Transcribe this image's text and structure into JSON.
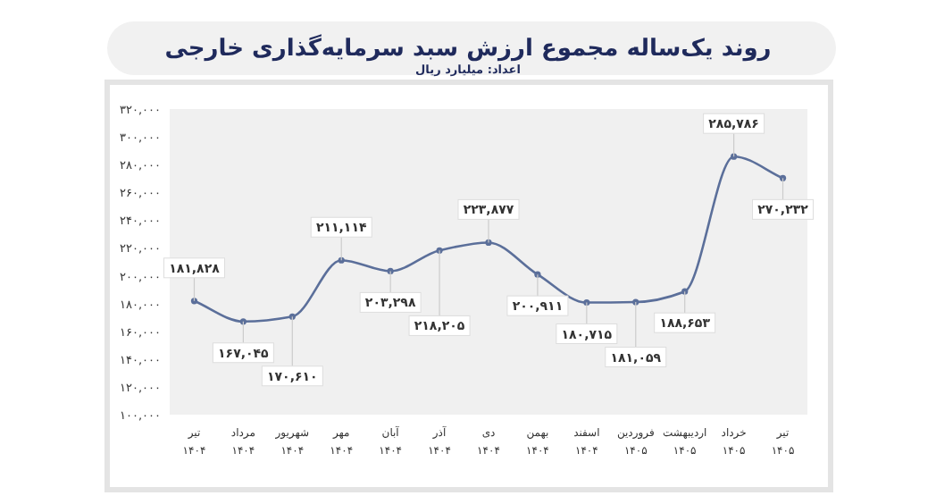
{
  "chart_data": {
    "type": "line",
    "title": "روند یک‌ساله مجموع ارزش سبد سرمایه‌گذاری خارجی",
    "subtitle": "اعداد: میلیارد ریال",
    "categories": [
      "تیر\n۱۴۰۴",
      "مرداد\n۱۴۰۴",
      "شهریور\n۱۴۰۴",
      "مهر\n۱۴۰۴",
      "آبان\n۱۴۰۴",
      "آذر\n۱۴۰۴",
      "دی\n۱۴۰۴",
      "بهمن\n۱۴۰۴",
      "اسفند\n۱۴۰۴",
      "فروردین\n۱۴۰۵",
      "اردیبهشت\n۱۴۰۵",
      "خرداد\n۱۴۰۵",
      "تیر\n۱۴۰۵"
    ],
    "values": [
      181828,
      167045,
      170610,
      211114,
      203298,
      218205,
      223877,
      200911,
      180715,
      181059,
      188653,
      285786,
      270232
    ],
    "value_labels": [
      "۱۸۱,۸۲۸",
      "۱۶۷,۰۴۵",
      "۱۷۰,۶۱۰",
      "۲۱۱,۱۱۴",
      "۲۰۳,۲۹۸",
      "۲۱۸,۲۰۵",
      "۲۲۳,۸۷۷",
      "۲۰۰,۹۱۱",
      "۱۸۰,۷۱۵",
      "۱۸۱,۰۵۹",
      "۱۸۸,۶۵۳",
      "۲۸۵,۷۸۶",
      "۲۷۰,۲۳۲"
    ],
    "color": "#5b6f9a",
    "marker": "circle",
    "ylim": [
      100000,
      320000
    ],
    "yticks": [
      {
        "value": 100000,
        "label": "۱۰۰,۰۰۰"
      },
      {
        "value": 120000,
        "label": "۱۲۰,۰۰۰"
      },
      {
        "value": 140000,
        "label": "۱۴۰,۰۰۰"
      },
      {
        "value": 160000,
        "label": "۱۶۰,۰۰۰"
      },
      {
        "value": 180000,
        "label": "۱۸۰,۰۰۰"
      },
      {
        "value": 200000,
        "label": "۲۰۰,۰۰۰"
      },
      {
        "value": 220000,
        "label": "۲۲۰,۰۰۰"
      },
      {
        "value": 240000,
        "label": "۲۴۰,۰۰۰"
      },
      {
        "value": 260000,
        "label": "۲۶۰,۰۰۰"
      },
      {
        "value": 280000,
        "label": "۲۸۰,۰۰۰"
      },
      {
        "value": 300000,
        "label": "۳۰۰,۰۰۰"
      },
      {
        "value": 320000,
        "label": "۳۲۰,۰۰۰"
      }
    ]
  }
}
